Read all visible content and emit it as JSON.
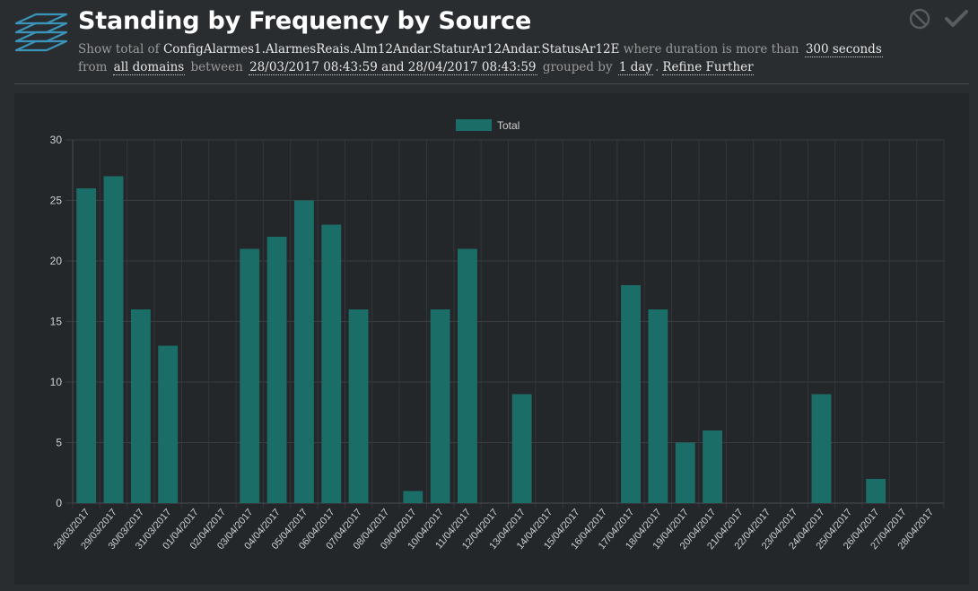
{
  "header": {
    "title": "Standing by Frequency by Source",
    "desc": {
      "t1": "Show total of ",
      "source": "ConfigAlarmes1.AlarmesReais.Alm12Andar.StaturAr12Andar.StatusAr12E",
      "t2": " where duration is more than ",
      "duration": "300 seconds",
      "t3": "from ",
      "domains": "all domains",
      "t4": " between ",
      "range": "28/03/2017 08:43:59 and 28/04/2017 08:43:59",
      "t5": " grouped by ",
      "group": "1 day",
      "t6": ".",
      "refine": "Refine Further"
    }
  },
  "icons": {
    "logo": "layers-icon",
    "cancel": "ban-icon",
    "accept": "check-icon"
  },
  "colors": {
    "bar": "#1b6e67",
    "background": "#2a2d30",
    "panel": "#24272a",
    "logo": "#3a93b8"
  },
  "chart_data": {
    "type": "bar",
    "legend_position": "top",
    "grid": true,
    "ylim": [
      0,
      30
    ],
    "yticks": [
      0,
      5,
      10,
      15,
      20,
      25,
      30
    ],
    "categories": [
      "28/03/2017",
      "29/03/2017",
      "30/03/2017",
      "31/03/2017",
      "01/04/2017",
      "02/04/2017",
      "03/04/2017",
      "04/04/2017",
      "05/04/2017",
      "06/04/2017",
      "07/04/2017",
      "08/04/2017",
      "09/04/2017",
      "10/04/2017",
      "11/04/2017",
      "12/04/2017",
      "13/04/2017",
      "14/04/2017",
      "15/04/2017",
      "16/04/2017",
      "17/04/2017",
      "18/04/2017",
      "19/04/2017",
      "20/04/2017",
      "21/04/2017",
      "22/04/2017",
      "23/04/2017",
      "24/04/2017",
      "25/04/2017",
      "26/04/2017",
      "27/04/2017",
      "28/04/2017"
    ],
    "series": [
      {
        "name": "Total",
        "values": [
          26,
          27,
          16,
          13,
          0,
          0,
          21,
          22,
          25,
          23,
          16,
          0,
          1,
          16,
          21,
          0,
          9,
          0,
          0,
          0,
          18,
          16,
          5,
          6,
          0,
          0,
          0,
          9,
          0,
          2,
          0,
          0
        ]
      }
    ]
  }
}
